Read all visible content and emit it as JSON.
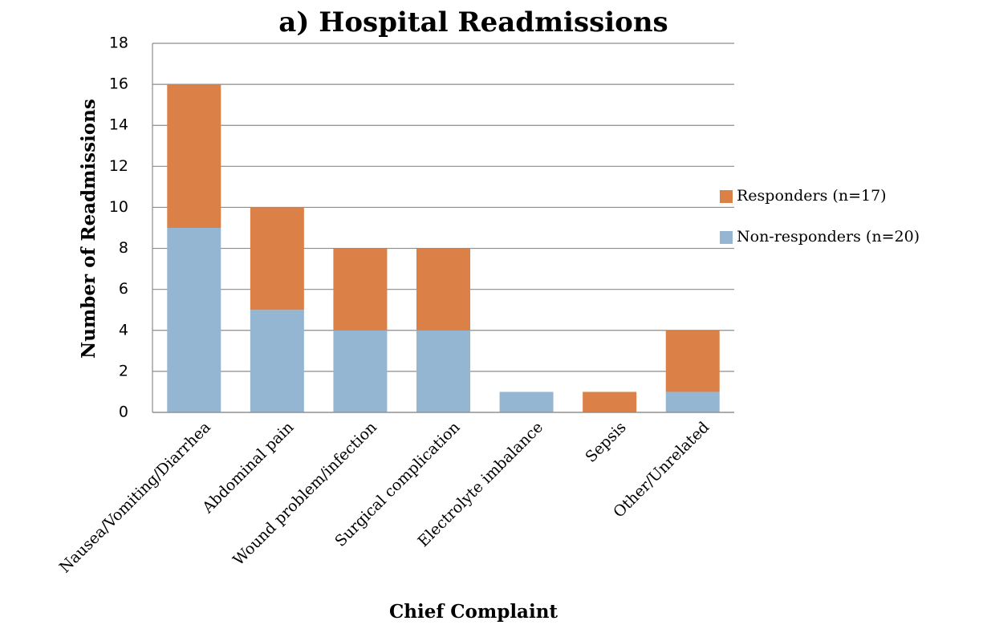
{
  "chart_data": {
    "type": "stacked-bar",
    "title": "a) Hospital Readmissions",
    "x_label": "Chief Complaint",
    "y_label": "Number of Readmissions",
    "categories": [
      "Nausea/Vomiting/Diarrhea",
      "Abdominal  pain",
      "Wound problem/infection",
      "Surgical complication",
      "Electrolyte imbalance",
      "Sepsis",
      "Other/Unrelated"
    ],
    "series": [
      {
        "name": "Non-responders (n=20)",
        "color": "#95b6d3",
        "values": [
          9,
          5,
          4,
          4,
          1,
          0,
          1
        ]
      },
      {
        "name": "Responders (n=17)",
        "color": "#db8148",
        "values": [
          7,
          5,
          4,
          4,
          0,
          1,
          3
        ]
      }
    ],
    "ylim": [
      0,
      18
    ],
    "yticks": [
      0,
      2,
      4,
      6,
      8,
      10,
      12,
      14,
      16,
      18
    ],
    "grid": true,
    "legend": "right"
  }
}
